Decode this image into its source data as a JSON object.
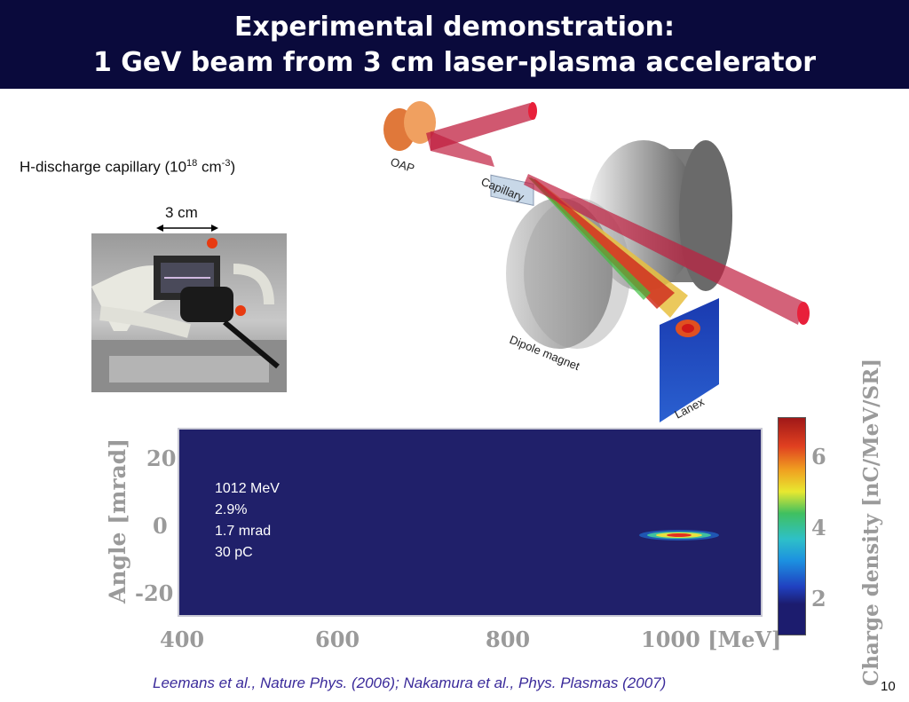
{
  "title": {
    "line1": "Experimental demonstration:",
    "line2": "1 GeV beam from 3 cm laser-plasma accelerator"
  },
  "capillary": {
    "label_prefix": "H-discharge capillary (10",
    "label_exp1": "18",
    "label_mid": " cm",
    "label_exp2": "-3",
    "label_suffix": ")",
    "scale_label": "3 cm"
  },
  "schematic": {
    "labels": [
      "OAP",
      "Capillary",
      "Dipole magnet",
      "Lanex"
    ]
  },
  "spectrum_plot": {
    "annotation": [
      "1012 MeV",
      "2.9%",
      "1.7 mrad",
      "30 pC"
    ],
    "x_ticks": [
      "400",
      "600",
      "800",
      "1000 [MeV]"
    ],
    "y_ticks": [
      "20",
      "0",
      "-20"
    ],
    "ylabel": "Angle [mrad]",
    "colorbar_ticks": [
      "6",
      "4",
      "2"
    ],
    "colorbar_label": "Charge density [nC/MeV/SR]",
    "colors": {
      "background": "#20206a",
      "beam_core": "#e03020"
    }
  },
  "citation": "Leemans et al., Nature Phys. (2006); Nakamura et al., Phys. Plasmas (2007)",
  "page_number": "10"
}
